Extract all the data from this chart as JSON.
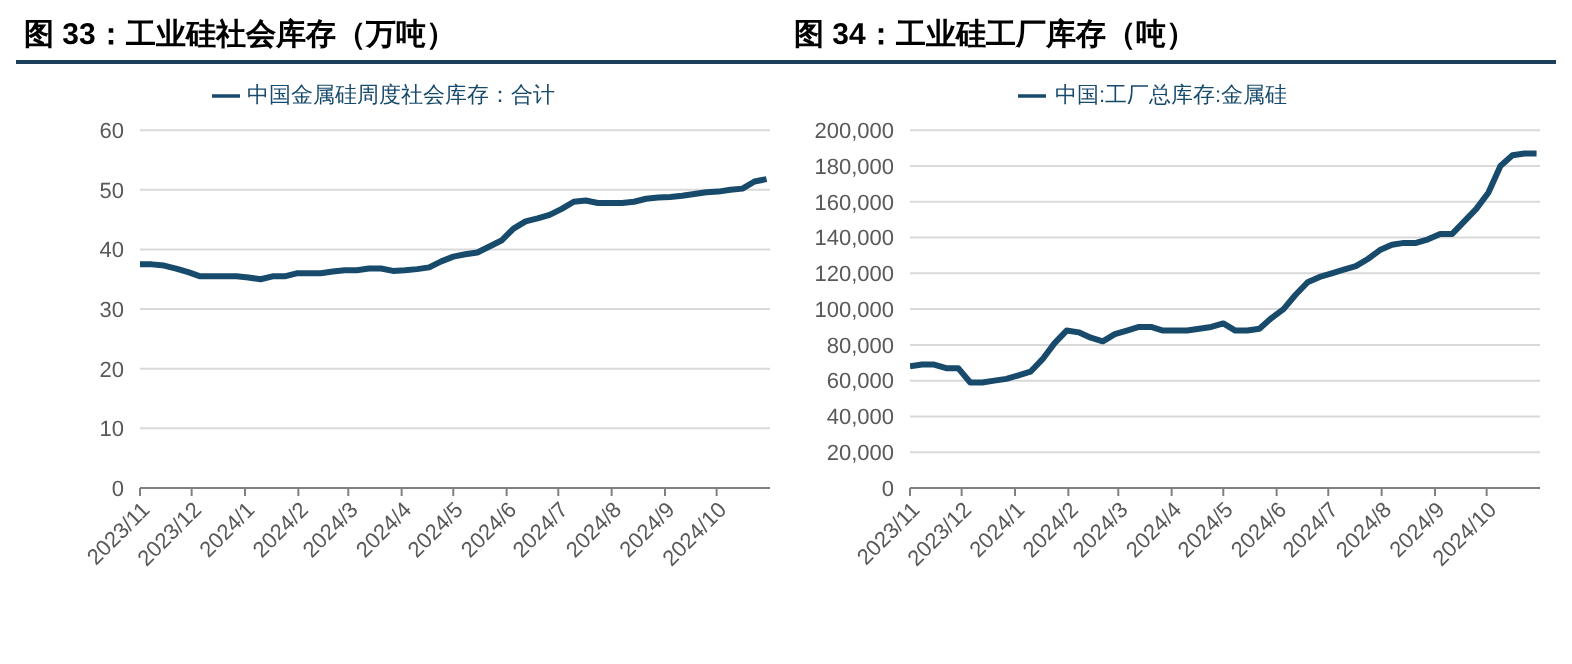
{
  "chart_data": [
    {
      "type": "line",
      "title": "图 33：工业硅社会库存（万吨）",
      "x": [
        "2023-11-01",
        "2023-11-08",
        "2023-11-15",
        "2023-11-22",
        "2023-11-29",
        "2023-12-06",
        "2023-12-13",
        "2023-12-20",
        "2023-12-27",
        "2024-01-03",
        "2024-01-10",
        "2024-01-17",
        "2024-01-24",
        "2024-01-31",
        "2024-02-07",
        "2024-02-14",
        "2024-02-21",
        "2024-02-28",
        "2024-03-06",
        "2024-03-13",
        "2024-03-20",
        "2024-03-27",
        "2024-04-03",
        "2024-04-10",
        "2024-04-17",
        "2024-04-24",
        "2024-05-01",
        "2024-05-08",
        "2024-05-15",
        "2024-05-22",
        "2024-05-29",
        "2024-06-05",
        "2024-06-12",
        "2024-06-19",
        "2024-06-26",
        "2024-07-03",
        "2024-07-10",
        "2024-07-17",
        "2024-07-24",
        "2024-07-31",
        "2024-08-07",
        "2024-08-14",
        "2024-08-21",
        "2024-08-28",
        "2024-09-04",
        "2024-09-11",
        "2024-09-18",
        "2024-09-25",
        "2024-10-02",
        "2024-10-09",
        "2024-10-16",
        "2024-10-23",
        "2024-10-30"
      ],
      "series": [
        {
          "name": "中国金属硅周度社会库存：合计",
          "color": "#174a6b",
          "values": [
            37.5,
            37.5,
            37.3,
            36.8,
            36.2,
            35.5,
            35.5,
            35.5,
            35.5,
            35.3,
            35,
            35.5,
            35.5,
            36,
            36,
            36,
            36.3,
            36.5,
            36.5,
            36.8,
            36.8,
            36.4,
            36.5,
            36.7,
            37,
            38,
            38.8,
            39.2,
            39.5,
            40.5,
            41.5,
            43.5,
            44.7,
            45.2,
            45.8,
            46.8,
            48,
            48.2,
            47.8,
            47.8,
            47.8,
            48,
            48.5,
            48.7,
            48.8,
            49,
            49.3,
            49.6,
            49.7,
            50,
            50.2,
            51.4,
            51.8
          ]
        }
      ],
      "xlim": [
        "2023-11-01",
        "2024-11-01"
      ],
      "xticks": [
        {
          "value": "2023-11-01",
          "label": "2023/11"
        },
        {
          "value": "2023-12-01",
          "label": "2023/12"
        },
        {
          "value": "2024-01-01",
          "label": "2024/1"
        },
        {
          "value": "2024-02-01",
          "label": "2024/2"
        },
        {
          "value": "2024-03-01",
          "label": "2024/3"
        },
        {
          "value": "2024-04-01",
          "label": "2024/4"
        },
        {
          "value": "2024-05-01",
          "label": "2024/5"
        },
        {
          "value": "2024-06-01",
          "label": "2024/6"
        },
        {
          "value": "2024-07-01",
          "label": "2024/7"
        },
        {
          "value": "2024-08-01",
          "label": "2024/8"
        },
        {
          "value": "2024-09-01",
          "label": "2024/9"
        },
        {
          "value": "2024-10-01",
          "label": "2024/10"
        }
      ],
      "ylim": [
        0,
        60
      ],
      "yticks": [
        0,
        10,
        20,
        30,
        40,
        50,
        60
      ],
      "grid": "y",
      "legend": "top",
      "marker": "none",
      "line_style": "solid"
    },
    {
      "type": "line",
      "title": "图 34：工业硅工厂库存（吨）",
      "x": [
        "2023-11-01",
        "2023-11-08",
        "2023-11-15",
        "2023-11-22",
        "2023-11-29",
        "2023-12-06",
        "2023-12-13",
        "2023-12-20",
        "2023-12-27",
        "2024-01-03",
        "2024-01-10",
        "2024-01-17",
        "2024-01-24",
        "2024-01-31",
        "2024-02-07",
        "2024-02-14",
        "2024-02-21",
        "2024-02-28",
        "2024-03-06",
        "2024-03-13",
        "2024-03-20",
        "2024-03-27",
        "2024-04-03",
        "2024-04-10",
        "2024-04-17",
        "2024-04-24",
        "2024-05-01",
        "2024-05-08",
        "2024-05-15",
        "2024-05-22",
        "2024-05-29",
        "2024-06-05",
        "2024-06-12",
        "2024-06-19",
        "2024-06-26",
        "2024-07-03",
        "2024-07-10",
        "2024-07-17",
        "2024-07-24",
        "2024-07-31",
        "2024-08-07",
        "2024-08-14",
        "2024-08-21",
        "2024-08-28",
        "2024-09-04",
        "2024-09-11",
        "2024-09-18",
        "2024-09-25",
        "2024-10-02",
        "2024-10-09",
        "2024-10-16",
        "2024-10-23",
        "2024-10-30"
      ],
      "series": [
        {
          "name": "中国:工厂总库存:金属硅",
          "color": "#174a6b",
          "values": [
            68000,
            69000,
            69000,
            67000,
            67000,
            59000,
            59000,
            60000,
            61000,
            63000,
            65000,
            72000,
            81000,
            88000,
            87000,
            84000,
            82000,
            86000,
            88000,
            90000,
            90000,
            88000,
            88000,
            88000,
            89000,
            90000,
            92000,
            88000,
            88000,
            89000,
            95000,
            100000,
            108000,
            115000,
            118000,
            120000,
            122000,
            124000,
            128000,
            133000,
            136000,
            137000,
            137000,
            139000,
            142000,
            142000,
            149000,
            156000,
            165000,
            180000,
            186000,
            187000,
            187000
          ]
        }
      ],
      "xlim": [
        "2023-11-01",
        "2024-11-01"
      ],
      "xticks": [
        {
          "value": "2023-11-01",
          "label": "2023/11"
        },
        {
          "value": "2023-12-01",
          "label": "2023/12"
        },
        {
          "value": "2024-01-01",
          "label": "2024/1"
        },
        {
          "value": "2024-02-01",
          "label": "2024/2"
        },
        {
          "value": "2024-03-01",
          "label": "2024/3"
        },
        {
          "value": "2024-04-01",
          "label": "2024/4"
        },
        {
          "value": "2024-05-01",
          "label": "2024/5"
        },
        {
          "value": "2024-06-01",
          "label": "2024/6"
        },
        {
          "value": "2024-07-01",
          "label": "2024/7"
        },
        {
          "value": "2024-08-01",
          "label": "2024/8"
        },
        {
          "value": "2024-09-01",
          "label": "2024/9"
        },
        {
          "value": "2024-10-01",
          "label": "2024/10"
        }
      ],
      "ylim": [
        0,
        200000
      ],
      "yticks": [
        {
          "value": 0,
          "label": "0"
        },
        {
          "value": 20000,
          "label": "20,000"
        },
        {
          "value": 40000,
          "label": "40,000"
        },
        {
          "value": 60000,
          "label": "60,000"
        },
        {
          "value": 80000,
          "label": "80,000"
        },
        {
          "value": 100000,
          "label": "100,000"
        },
        {
          "value": 120000,
          "label": "120,000"
        },
        {
          "value": 140000,
          "label": "140,000"
        },
        {
          "value": 160000,
          "label": "160,000"
        },
        {
          "value": 180000,
          "label": "180,000"
        },
        {
          "value": 200000,
          "label": "200,000"
        }
      ],
      "grid": "y",
      "legend": "top",
      "marker": "none",
      "line_style": "solid"
    }
  ]
}
